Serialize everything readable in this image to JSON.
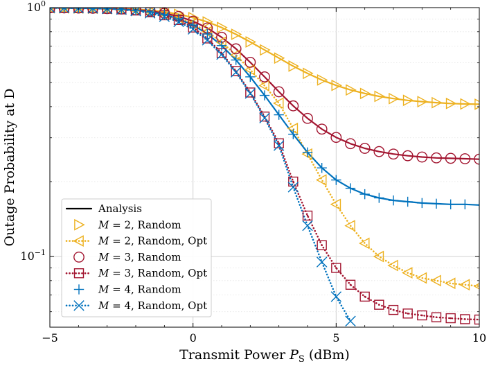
{
  "chart_data": {
    "type": "line",
    "xlabel": "Transmit Power P_S (dBm)",
    "xlabel_parts": {
      "main": "Transmit Power ",
      "var": "P",
      "sub": "S",
      "unit": " (dBm)"
    },
    "ylabel": "Outage Probability at D",
    "xlim": [
      -5,
      10
    ],
    "ylim": [
      0.052,
      1.0
    ],
    "yscale": "log",
    "x_ticks": [
      -5,
      0,
      5,
      10
    ],
    "x_tick_labels": [
      "−5",
      "0",
      "5",
      "10"
    ],
    "y_major_ticks": [
      {
        "value": 1.0,
        "base": "10",
        "exp": "0"
      },
      {
        "value": 0.1,
        "base": "10",
        "exp": "−1"
      }
    ],
    "grid": true,
    "legend_position": "lower-left",
    "colors": {
      "M2": "#EDB120",
      "M3": "#A2142F",
      "M4": "#0072BD",
      "analysis": "#000000"
    },
    "series": [
      {
        "name": "Analysis",
        "color": "#000000",
        "marker": "none",
        "line": "solid",
        "legend_only": true,
        "x": [],
        "y": []
      },
      {
        "name": "M = 2, Random",
        "color": "#EDB120",
        "marker": "triangle-right",
        "line": "solid",
        "x": [
          -5,
          -4.5,
          -4,
          -3.5,
          -3,
          -2.5,
          -2,
          -1.5,
          -1,
          -0.5,
          0,
          0.5,
          1,
          1.5,
          2,
          2.5,
          3,
          3.5,
          4,
          4.5,
          5,
          5.5,
          6,
          6.5,
          7,
          7.5,
          8,
          8.5,
          9,
          9.5,
          10
        ],
        "y": [
          0.998,
          0.997,
          0.996,
          0.995,
          0.993,
          0.99,
          0.985,
          0.976,
          0.962,
          0.94,
          0.912,
          0.876,
          0.832,
          0.781,
          0.728,
          0.676,
          0.627,
          0.582,
          0.544,
          0.512,
          0.487,
          0.467,
          0.452,
          0.44,
          0.431,
          0.424,
          0.419,
          0.415,
          0.412,
          0.41,
          0.409
        ]
      },
      {
        "name": "M = 2, Random, Opt",
        "color": "#EDB120",
        "marker": "triangle-left",
        "line": "dotted",
        "x": [
          -5,
          -4.5,
          -4,
          -3.5,
          -3,
          -2.5,
          -2,
          -1.5,
          -1,
          -0.5,
          0,
          0.5,
          1,
          1.5,
          2,
          2.5,
          3,
          3.5,
          4,
          4.5,
          5,
          5.5,
          6,
          6.5,
          7,
          7.5,
          8,
          8.5,
          9,
          9.5,
          10
        ],
        "y": [
          0.998,
          0.997,
          0.996,
          0.994,
          0.991,
          0.986,
          0.978,
          0.965,
          0.944,
          0.91,
          0.862,
          0.8,
          0.726,
          0.645,
          0.563,
          0.486,
          0.413,
          0.327,
          0.258,
          0.203,
          0.162,
          0.133,
          0.113,
          0.1,
          0.092,
          0.086,
          0.082,
          0.08,
          0.078,
          0.077,
          0.076
        ]
      },
      {
        "name": "M = 3, Random",
        "color": "#A2142F",
        "marker": "circle",
        "line": "solid",
        "x": [
          -5,
          -4.5,
          -4,
          -3.5,
          -3,
          -2.5,
          -2,
          -1.5,
          -1,
          -0.5,
          0,
          0.5,
          1,
          1.5,
          2,
          2.5,
          3,
          3.5,
          4,
          4.5,
          5,
          5.5,
          6,
          6.5,
          7,
          7.5,
          8,
          8.5,
          9,
          9.5,
          10
        ],
        "y": [
          0.998,
          0.997,
          0.996,
          0.994,
          0.991,
          0.987,
          0.98,
          0.969,
          0.95,
          0.922,
          0.882,
          0.828,
          0.76,
          0.683,
          0.603,
          0.527,
          0.459,
          0.403,
          0.359,
          0.325,
          0.301,
          0.284,
          0.272,
          0.264,
          0.258,
          0.254,
          0.251,
          0.249,
          0.248,
          0.247,
          0.246
        ]
      },
      {
        "name": "M = 3, Random, Opt",
        "color": "#A2142F",
        "marker": "square-dot",
        "line": "dotted",
        "x": [
          -5,
          -4.5,
          -4,
          -3.5,
          -3,
          -2.5,
          -2,
          -1.5,
          -1,
          -0.5,
          0,
          0.5,
          1,
          1.5,
          2,
          2.5,
          3,
          3.5,
          4,
          4.5,
          5,
          5.5,
          6,
          6.5,
          7,
          7.5,
          8,
          8.5,
          9,
          9.5,
          10
        ],
        "y": [
          0.998,
          0.997,
          0.996,
          0.994,
          0.99,
          0.984,
          0.974,
          0.958,
          0.932,
          0.892,
          0.832,
          0.752,
          0.657,
          0.556,
          0.456,
          0.365,
          0.285,
          0.2,
          0.146,
          0.111,
          0.09,
          0.077,
          0.069,
          0.064,
          0.061,
          0.059,
          0.058,
          0.057,
          0.0565,
          0.056,
          0.0558
        ]
      },
      {
        "name": "M = 4, Random",
        "color": "#0072BD",
        "marker": "plus",
        "line": "solid",
        "x": [
          -5,
          -4.5,
          -4,
          -3.5,
          -3,
          -2.5,
          -2,
          -1.5,
          -1,
          -0.5,
          0,
          0.5,
          1,
          1.5,
          2,
          2.5,
          3,
          3.5,
          4,
          4.5,
          5,
          5.5,
          6,
          6.5,
          7,
          7.5,
          8,
          8.5,
          9,
          9.5,
          10
        ],
        "y": [
          0.998,
          0.997,
          0.995,
          0.993,
          0.99,
          0.984,
          0.975,
          0.961,
          0.938,
          0.902,
          0.851,
          0.784,
          0.704,
          0.616,
          0.527,
          0.444,
          0.371,
          0.31,
          0.262,
          0.227,
          0.203,
          0.188,
          0.178,
          0.172,
          0.168,
          0.166,
          0.164,
          0.163,
          0.162,
          0.162,
          0.161
        ]
      },
      {
        "name": "M = 4, Random, Opt",
        "color": "#0072BD",
        "marker": "x",
        "line": "dotted",
        "x": [
          -5,
          -4.5,
          -4,
          -3.5,
          -3,
          -2.5,
          -2,
          -1.5,
          -1,
          -0.5,
          0,
          0.5,
          1,
          1.5,
          2,
          2.5,
          3,
          3.5,
          4,
          4.5,
          5,
          5.5
        ],
        "y": [
          0.998,
          0.997,
          0.995,
          0.993,
          0.989,
          0.982,
          0.97,
          0.95,
          0.92,
          0.877,
          0.818,
          0.74,
          0.648,
          0.55,
          0.452,
          0.36,
          0.279,
          0.19,
          0.133,
          0.095,
          0.069,
          0.055
        ]
      }
    ]
  }
}
